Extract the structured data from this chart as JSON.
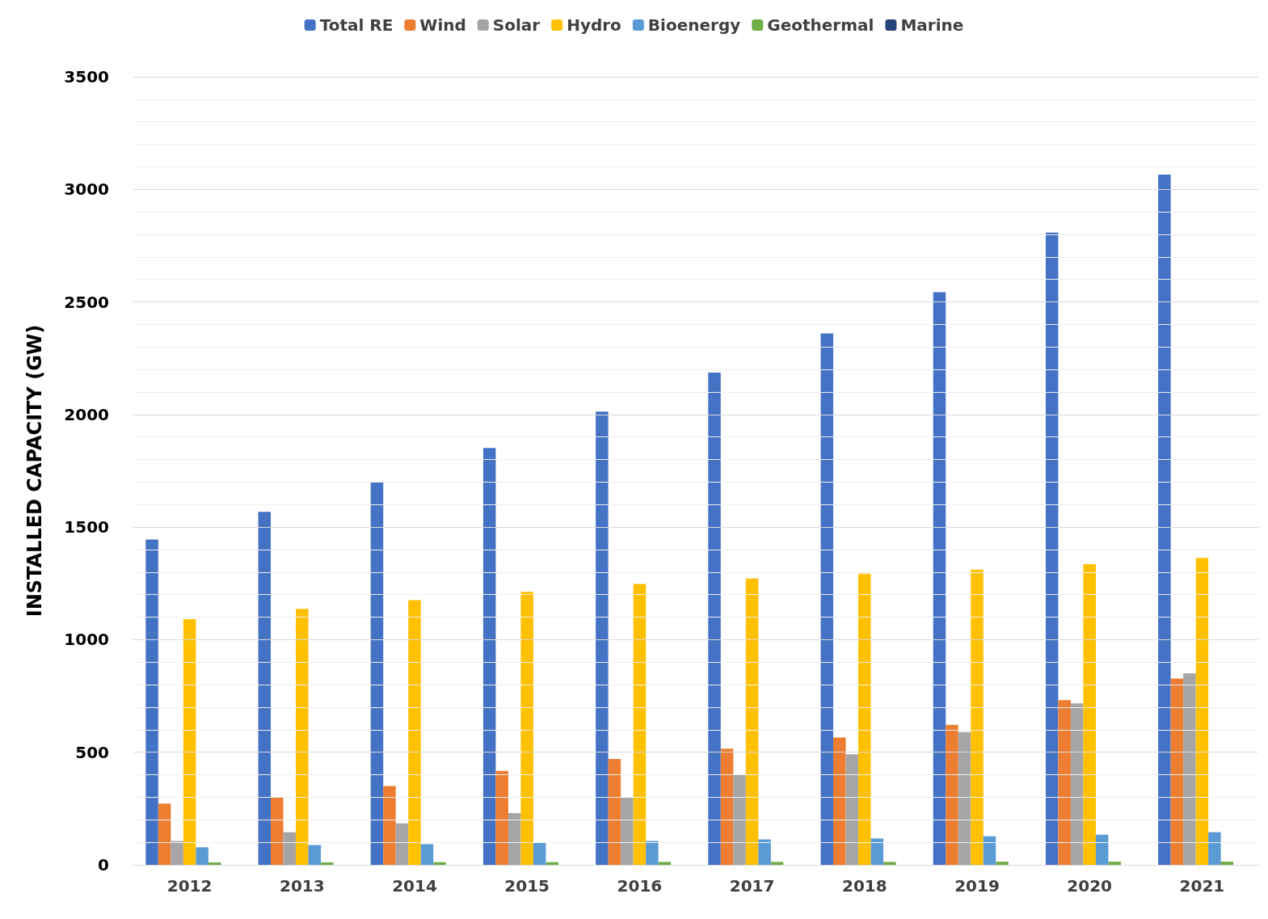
{
  "chart_data": {
    "type": "bar",
    "ylabel": "INSTALLED CAPACITY (GW)",
    "categories": [
      "2012",
      "2013",
      "2014",
      "2015",
      "2016",
      "2017",
      "2018",
      "2019",
      "2020",
      "2021"
    ],
    "series": [
      {
        "name": "Total RE",
        "color": "#4472c4",
        "values": [
          1445,
          1568,
          1699,
          1851,
          2013,
          2186,
          2360,
          2543,
          2808,
          3066
        ]
      },
      {
        "name": "Wind",
        "color": "#ed7d31",
        "values": [
          272,
          300,
          350,
          417,
          470,
          516,
          565,
          622,
          731,
          827
        ]
      },
      {
        "name": "Solar",
        "color": "#a5a5a5",
        "values": [
          106,
          145,
          184,
          230,
          300,
          399,
          491,
          590,
          717,
          851
        ]
      },
      {
        "name": "Hydro",
        "color": "#ffc000",
        "values": [
          1091,
          1137,
          1176,
          1212,
          1247,
          1272,
          1293,
          1311,
          1335,
          1363
        ]
      },
      {
        "name": "Bioenergy",
        "color": "#5b9bd5",
        "values": [
          78,
          88,
          92,
          99,
          106,
          113,
          117,
          127,
          134,
          145
        ]
      },
      {
        "name": "Geothermal",
        "color": "#70ad47",
        "values": [
          11,
          11,
          12,
          12,
          13,
          13,
          13,
          14,
          14,
          14
        ]
      },
      {
        "name": "Marine",
        "color": "#264478",
        "values": [
          0,
          0,
          0,
          0,
          0,
          0,
          0,
          0,
          0,
          0
        ]
      }
    ],
    "ylim": [
      0,
      3500
    ],
    "yticks": [
      0,
      {
        "value": 100,
        "label": null
      },
      {
        "value": 200,
        "label": null
      },
      {
        "value": 300,
        "label": null
      },
      {
        "value": 400,
        "label": null
      },
      500,
      {
        "value": 600,
        "label": null
      },
      {
        "value": 700,
        "label": null
      },
      {
        "value": 800,
        "label": null
      },
      {
        "value": 900,
        "label": null
      },
      1000,
      {
        "value": 1100,
        "label": null
      },
      {
        "value": 1200,
        "label": null
      },
      {
        "value": 1300,
        "label": null
      },
      {
        "value": 1400,
        "label": null
      },
      1500,
      {
        "value": 1600,
        "label": null
      },
      {
        "value": 1700,
        "label": null
      },
      {
        "value": 1800,
        "label": null
      },
      {
        "value": 1900,
        "label": null
      },
      2000,
      {
        "value": 2100,
        "label": null
      },
      {
        "value": 2200,
        "label": null
      },
      {
        "value": 2300,
        "label": null
      },
      {
        "value": 2400,
        "label": null
      },
      2500,
      {
        "value": 2600,
        "label": null
      },
      {
        "value": 2700,
        "label": null
      },
      {
        "value": 2800,
        "label": null
      },
      {
        "value": 2900,
        "label": null
      },
      3000,
      {
        "value": 3100,
        "label": null
      },
      {
        "value": 3200,
        "label": null
      },
      {
        "value": 3300,
        "label": null
      },
      {
        "value": 3400,
        "label": null
      },
      3500
    ],
    "grid": "y",
    "legend": "top"
  }
}
